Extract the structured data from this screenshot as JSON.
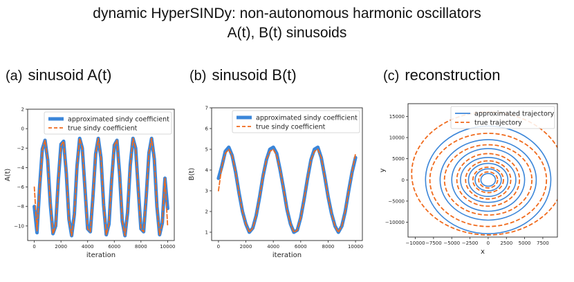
{
  "title": "dynamic HyperSINDy: non-autonomous harmonic oscillators",
  "subtitle": "A(t), B(t) sinusoids",
  "panels": [
    {
      "tag": "(a)",
      "name": "sinusoid A(t)"
    },
    {
      "tag": "(b)",
      "name": "sinusoid B(t)"
    },
    {
      "tag": "(c)",
      "name": "reconstruction"
    }
  ],
  "colors": {
    "approx": "#3b86d9",
    "true": "#f06a1c"
  },
  "chart_data": [
    {
      "type": "line",
      "xlabel": "iteration",
      "ylabel": "A(t)",
      "xlim": [
        -500,
        10500
      ],
      "ylim": [
        -11.5,
        2
      ],
      "xticks": [
        0,
        2000,
        4000,
        6000,
        8000,
        10000
      ],
      "yticks": [
        2,
        0,
        -2,
        -4,
        -6,
        -8,
        -10
      ],
      "legend": {
        "position": "top-right",
        "entries": [
          "approximated sindy coefficient",
          "true sindy coefficient"
        ]
      },
      "series": [
        {
          "name": "approximated sindy coefficient",
          "style": "thick-solid",
          "x": [
            0,
            200,
            400,
            600,
            800,
            1000,
            1200,
            1400,
            1600,
            1800,
            2000,
            2200,
            2400,
            2600,
            2800,
            3000,
            3200,
            3400,
            3600,
            3800,
            4000,
            4200,
            4400,
            4600,
            4800,
            5000,
            5200,
            5400,
            5600,
            5800,
            6000,
            6200,
            6400,
            6600,
            6800,
            7000,
            7200,
            7400,
            7600,
            7800,
            8000,
            8200,
            8400,
            8600,
            8800,
            9000,
            9200,
            9400,
            9600,
            9800,
            10000
          ],
          "y": [
            -8.0,
            -10.7,
            -6.0,
            -2.1,
            -1.2,
            -3.2,
            -7.8,
            -10.8,
            -10.0,
            -5.3,
            -1.6,
            -1.3,
            -4.6,
            -9.3,
            -11.0,
            -8.8,
            -3.9,
            -1.0,
            -2.0,
            -6.2,
            -10.3,
            -10.6,
            -7.0,
            -2.6,
            -1.0,
            -3.0,
            -7.9,
            -10.9,
            -9.8,
            -5.3,
            -1.7,
            -1.2,
            -4.7,
            -9.5,
            -11.0,
            -8.6,
            -3.7,
            -1.0,
            -2.0,
            -6.3,
            -10.3,
            -10.6,
            -6.9,
            -2.5,
            -1.0,
            -3.1,
            -8.0,
            -10.9,
            -9.7,
            -5.1,
            -8.2
          ]
        },
        {
          "name": "true sindy coefficient",
          "style": "dashed",
          "x": [
            0,
            200,
            400,
            600,
            800,
            1000,
            1200,
            1400,
            1600,
            1800,
            2000,
            2200,
            2400,
            2600,
            2800,
            3000,
            3200,
            3400,
            3600,
            3800,
            4000,
            4200,
            4400,
            4600,
            4800,
            5000,
            5200,
            5400,
            5600,
            5800,
            6000,
            6200,
            6400,
            6600,
            6800,
            7000,
            7200,
            7400,
            7600,
            7800,
            8000,
            8200,
            8400,
            8600,
            8800,
            9000,
            9200,
            9400,
            9600,
            9800,
            10000
          ],
          "y": [
            -6.0,
            -10.5,
            -6.2,
            -2.2,
            -1.2,
            -3.1,
            -7.7,
            -10.8,
            -10.0,
            -5.4,
            -1.7,
            -1.3,
            -4.5,
            -9.3,
            -11.0,
            -8.8,
            -3.9,
            -1.0,
            -2.0,
            -6.2,
            -10.3,
            -10.6,
            -7.0,
            -2.6,
            -1.0,
            -3.0,
            -7.9,
            -10.9,
            -9.8,
            -5.3,
            -1.7,
            -1.2,
            -4.7,
            -9.5,
            -11.0,
            -8.6,
            -3.7,
            -1.0,
            -2.0,
            -6.3,
            -10.3,
            -10.6,
            -6.9,
            -2.5,
            -1.0,
            -3.1,
            -8.0,
            -10.9,
            -9.7,
            -5.1,
            -10.0
          ]
        }
      ]
    },
    {
      "type": "line",
      "xlabel": "iteration",
      "ylabel": "B(t)",
      "xlim": [
        -500,
        10500
      ],
      "ylim": [
        0.6,
        7
      ],
      "xticks": [
        0,
        2000,
        4000,
        6000,
        8000,
        10000
      ],
      "yticks": [
        7,
        6,
        5,
        4,
        3,
        2,
        1
      ],
      "legend": {
        "position": "top-right",
        "entries": [
          "approximated sindy coefficient",
          "true sindy coefficient"
        ]
      },
      "series": [
        {
          "name": "approximated sindy coefficient",
          "style": "thick-solid",
          "x": [
            0,
            250,
            500,
            750,
            1000,
            1250,
            1500,
            1750,
            2000,
            2250,
            2500,
            2750,
            3000,
            3250,
            3500,
            3750,
            4000,
            4250,
            4500,
            4750,
            5000,
            5250,
            5500,
            5750,
            6000,
            6250,
            6500,
            6750,
            7000,
            7250,
            7500,
            7750,
            8000,
            8250,
            8500,
            8750,
            9000,
            9250,
            9500,
            9750,
            10000
          ],
          "y": [
            3.6,
            4.2,
            4.9,
            5.1,
            4.7,
            3.9,
            2.9,
            2.0,
            1.4,
            1.0,
            1.2,
            1.8,
            2.7,
            3.7,
            4.5,
            5.0,
            5.1,
            4.8,
            4.0,
            3.1,
            2.1,
            1.4,
            1.0,
            1.1,
            1.7,
            2.6,
            3.6,
            4.5,
            5.0,
            5.1,
            4.6,
            3.7,
            2.7,
            1.9,
            1.3,
            1.0,
            1.3,
            2.0,
            3.0,
            3.9,
            4.6
          ]
        },
        {
          "name": "true sindy coefficient",
          "style": "dashed",
          "x": [
            0,
            250,
            500,
            750,
            1000,
            1250,
            1500,
            1750,
            2000,
            2250,
            2500,
            2750,
            3000,
            3250,
            3500,
            3750,
            4000,
            4250,
            4500,
            4750,
            5000,
            5250,
            5500,
            5750,
            6000,
            6250,
            6500,
            6750,
            7000,
            7250,
            7500,
            7750,
            8000,
            8250,
            8500,
            8750,
            9000,
            9250,
            9500,
            9750,
            10000
          ],
          "y": [
            3.0,
            4.2,
            4.8,
            5.0,
            4.7,
            3.9,
            2.9,
            2.0,
            1.4,
            1.0,
            1.2,
            1.8,
            2.7,
            3.7,
            4.5,
            4.9,
            5.0,
            4.7,
            4.0,
            3.1,
            2.1,
            1.4,
            1.0,
            1.1,
            1.7,
            2.6,
            3.6,
            4.5,
            4.9,
            5.0,
            4.6,
            3.7,
            2.7,
            1.9,
            1.3,
            1.0,
            1.3,
            2.0,
            3.0,
            3.9,
            4.8
          ]
        }
      ]
    },
    {
      "type": "line",
      "xlabel": "x",
      "ylabel": "y",
      "xlim": [
        -11000,
        9500
      ],
      "ylim": [
        -13500,
        18000
      ],
      "xticks": [
        -10000,
        -7500,
        -5000,
        -2500,
        0,
        2500,
        5000,
        7500
      ],
      "yticks": [
        15000,
        10000,
        5000,
        0,
        -5000,
        -10000
      ],
      "legend": {
        "position": "top-right",
        "entries": [
          "approximated trajectory",
          "true trajectory"
        ]
      },
      "series": [
        {
          "name": "approximated trajectory",
          "style": "solid",
          "ellipses": [
            {
              "cx": 0,
              "cy": 0,
              "rx": 8600,
              "ry": 12700
            },
            {
              "cx": 0,
              "cy": 0,
              "rx": 6600,
              "ry": 9500
            },
            {
              "cx": 0,
              "cy": 0,
              "rx": 5000,
              "ry": 7400
            },
            {
              "cx": 0,
              "cy": 0,
              "rx": 3800,
              "ry": 5300
            },
            {
              "cx": 0,
              "cy": 0,
              "rx": 2700,
              "ry": 3900
            },
            {
              "cx": 0,
              "cy": 0,
              "rx": 1800,
              "ry": 2600
            },
            {
              "cx": 0,
              "cy": 0,
              "rx": 1000,
              "ry": 1500
            }
          ]
        },
        {
          "name": "true trajectory",
          "style": "dashed",
          "ellipses": [
            {
              "cx": 0,
              "cy": 1500,
              "rx": 10500,
              "ry": 14500
            },
            {
              "cx": 0,
              "cy": 0,
              "rx": 8000,
              "ry": 11000
            },
            {
              "cx": 0,
              "cy": 0,
              "rx": 6000,
              "ry": 8300
            },
            {
              "cx": 0,
              "cy": 0,
              "rx": 4300,
              "ry": 6200
            },
            {
              "cx": 0,
              "cy": 0,
              "rx": 3100,
              "ry": 4500
            },
            {
              "cx": 0,
              "cy": 0,
              "rx": 2100,
              "ry": 3000
            },
            {
              "cx": 0,
              "cy": 0,
              "rx": 1300,
              "ry": 1900
            }
          ]
        }
      ]
    }
  ]
}
